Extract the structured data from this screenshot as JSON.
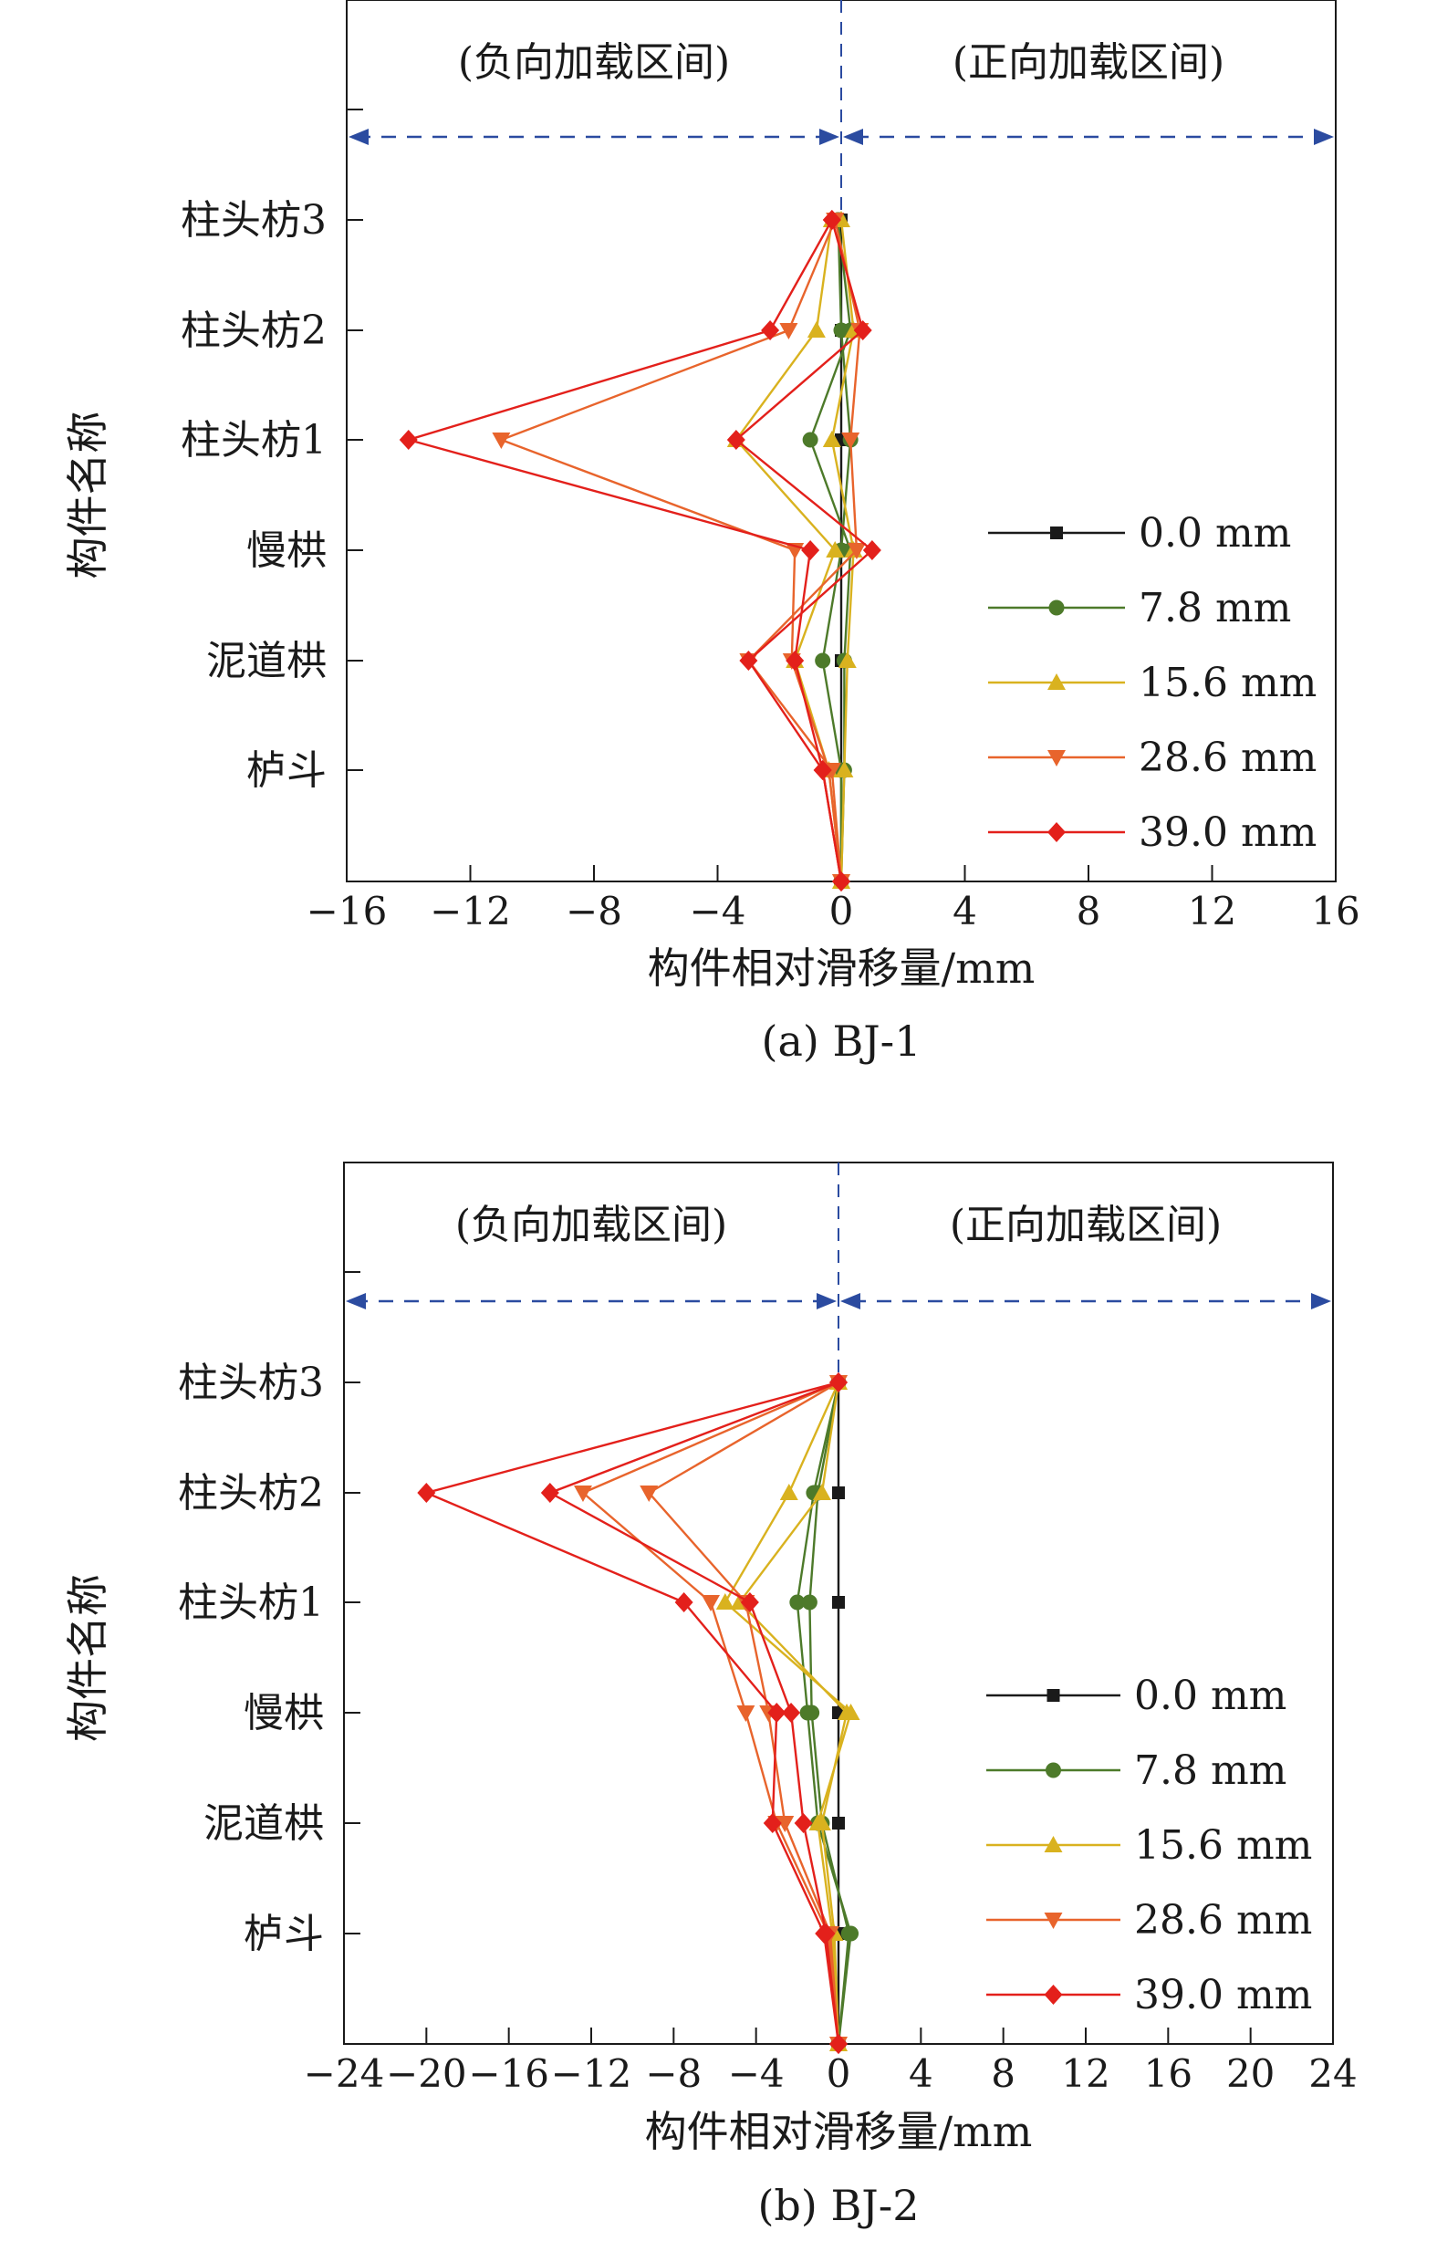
{
  "chart_data": [
    {
      "type": "line",
      "orientation": "horizontal",
      "caption": "(a) BJ-1",
      "xlabel": "构件相对滑移量/mm",
      "ylabel": "构件名称",
      "xlim": [
        -16,
        16
      ],
      "xticks": [
        -16,
        -12,
        -8,
        -4,
        0,
        4,
        8,
        12,
        16
      ],
      "categories": [
        "",
        "栌斗",
        "泥道栱",
        "慢栱",
        "柱头枋1",
        "柱头枋2",
        "柱头枋3"
      ],
      "region_labels": {
        "negative": "(负向加载区间)",
        "positive": "(正向加载区间)"
      },
      "legend_position": "lower-right",
      "grid": false,
      "series": [
        {
          "name": "0.0 mm",
          "color": "#1a1a1a",
          "marker": "square",
          "traces": [
            [
              0,
              0,
              0,
              0,
              0,
              0,
              0
            ]
          ]
        },
        {
          "name": "7.8 mm",
          "color": "#4d7a2a",
          "marker": "circle",
          "traces": [
            [
              0,
              0,
              -0.6,
              0,
              0.3,
              0,
              -0.1
            ],
            [
              0,
              0.1,
              0.1,
              0.3,
              -1.0,
              0.3,
              -0.1
            ]
          ]
        },
        {
          "name": "15.6 mm",
          "color": "#d9b21f",
          "marker": "triangle-up",
          "traces": [
            [
              0,
              -0.4,
              -1.5,
              -0.2,
              -3.4,
              -0.8,
              -0.3
            ],
            [
              0,
              0.1,
              0.2,
              0.4,
              -0.3,
              0.4,
              0
            ]
          ]
        },
        {
          "name": "28.6 mm",
          "color": "#e8642c",
          "marker": "triangle-down",
          "traces": [
            [
              0,
              -0.4,
              -1.6,
              -1.5,
              -11.0,
              -1.7,
              -0.2
            ],
            [
              0,
              -0.3,
              -3.0,
              0.5,
              0.3,
              0.6,
              -0.2
            ]
          ]
        },
        {
          "name": "39.0 mm",
          "color": "#e3201b",
          "marker": "diamond",
          "traces": [
            [
              0,
              -0.6,
              -1.5,
              -1.0,
              -14.0,
              -2.3,
              -0.3
            ],
            [
              0,
              -0.6,
              -3.0,
              1.0,
              -3.4,
              0.7,
              -0.3
            ]
          ]
        }
      ]
    },
    {
      "type": "line",
      "orientation": "horizontal",
      "caption": "(b) BJ-2",
      "xlabel": "构件相对滑移量/mm",
      "ylabel": "构件名称",
      "xlim": [
        -24,
        24
      ],
      "xticks": [
        -24,
        -20,
        -16,
        -12,
        -8,
        -4,
        0,
        4,
        8,
        12,
        16,
        20,
        24
      ],
      "categories": [
        "",
        "栌斗",
        "泥道栱",
        "慢栱",
        "柱头枋1",
        "柱头枋2",
        "柱头枋3"
      ],
      "region_labels": {
        "negative": "(负向加载区间)",
        "positive": "(正向加载区间)"
      },
      "legend_position": "lower-right",
      "grid": false,
      "series": [
        {
          "name": "0.0 mm",
          "color": "#1a1a1a",
          "marker": "square",
          "traces": [
            [
              0,
              0,
              0,
              0,
              0,
              0,
              0
            ]
          ]
        },
        {
          "name": "7.8 mm",
          "color": "#4d7a2a",
          "marker": "circle",
          "traces": [
            [
              0,
              0.6,
              -1.0,
              -1.5,
              -2.0,
              -1.2,
              0
            ],
            [
              0,
              0.5,
              -0.8,
              -1.3,
              -1.4,
              -1.0,
              0
            ]
          ]
        },
        {
          "name": "15.6 mm",
          "color": "#d9b21f",
          "marker": "triangle-up",
          "traces": [
            [
              0,
              -0.3,
              -1.0,
              0.6,
              -5.5,
              -2.4,
              0
            ],
            [
              0,
              -0.2,
              -0.8,
              0.4,
              -4.8,
              -0.8,
              0
            ]
          ]
        },
        {
          "name": "28.6 mm",
          "color": "#e8642c",
          "marker": "triangle-down",
          "traces": [
            [
              0,
              -0.5,
              -3.0,
              -4.5,
              -6.2,
              -12.4,
              0
            ],
            [
              0,
              -0.4,
              -2.6,
              -3.4,
              -4.5,
              -9.2,
              0
            ]
          ]
        },
        {
          "name": "39.0 mm",
          "color": "#e3201b",
          "marker": "diamond",
          "traces": [
            [
              0,
              -0.7,
              -3.2,
              -3.0,
              -7.5,
              -20.0,
              0
            ],
            [
              0,
              -0.6,
              -1.7,
              -2.3,
              -4.3,
              -14.0,
              0
            ]
          ]
        }
      ]
    }
  ]
}
